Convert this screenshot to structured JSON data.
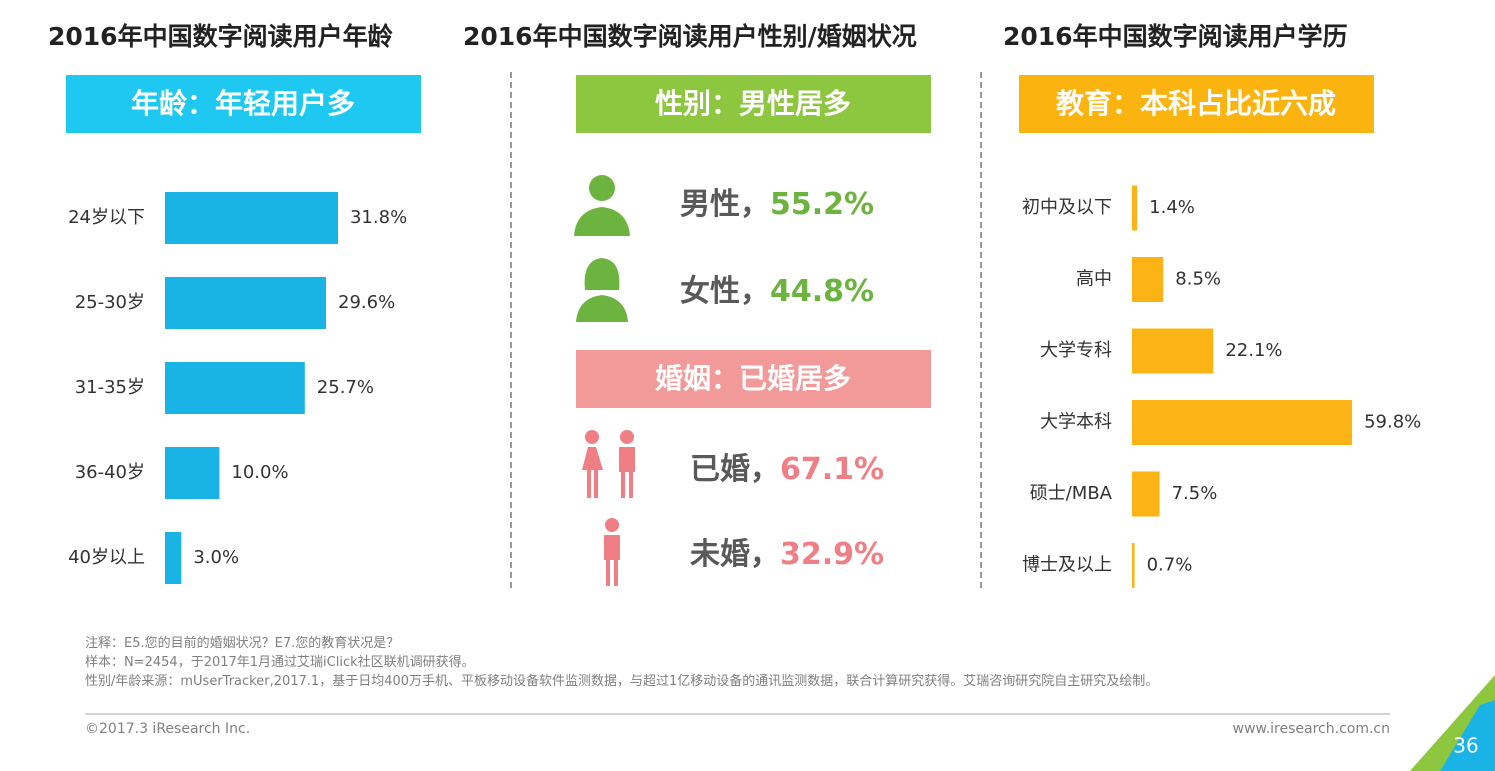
{
  "chart_data": [
    {
      "type": "hbar",
      "title": "2016年中国数字阅读用户年龄",
      "subtitle": "年龄：年轻用户多",
      "categories": [
        "24岁以下",
        "25-30岁",
        "31-35岁",
        "36-40岁",
        "40岁以上"
      ],
      "values": [
        31.8,
        29.6,
        25.7,
        10.0,
        3.0
      ],
      "value_labels": [
        "31.8%",
        "29.6%",
        "25.7%",
        "10.0%",
        "3.0%"
      ],
      "color": "#1ab3e6",
      "header_color": "#1ec8f0"
    },
    {
      "type": "stat",
      "title": "2016年中国数字阅读用户性别/婚姻状况",
      "subtitle": "性别：男性居多",
      "categories": [
        "男性，",
        "女性，"
      ],
      "values": [
        55.2,
        44.8
      ],
      "value_labels": [
        "55.2%",
        "44.8%"
      ],
      "color": "#6db33f",
      "header_color": "#8dc63f"
    },
    {
      "type": "stat",
      "subtitle": "婚姻：已婚居多",
      "categories": [
        "已婚，",
        "未婚，"
      ],
      "values": [
        67.1,
        32.9
      ],
      "value_labels": [
        "67.1%",
        "32.9%"
      ],
      "color": "#ef7f84",
      "header_color": "#f29a9a"
    },
    {
      "type": "hbar",
      "title": "2016年中国数字阅读用户学历",
      "subtitle": "教育：本科占比近六成",
      "categories": [
        "初中及以下",
        "高中",
        "大学专科",
        "大学本科",
        "硕士/MBA",
        "博士及以上"
      ],
      "values": [
        1.4,
        8.5,
        22.1,
        59.8,
        7.5,
        0.7
      ],
      "value_labels": [
        "1.4%",
        "8.5%",
        "22.1%",
        "59.8%",
        "7.5%",
        "0.7%"
      ],
      "color": "#fbb316",
      "header_color": "#fbb40f"
    }
  ],
  "notes": [
    "注释：E5.您的目前的婚姻状况？E7.您的教育状况是？",
    "样本：N=2454，于2017年1月通过艾瑞iClick社区联机调研获得。",
    "性别/年龄来源：mUserTracker,2017.1，基于日均400万手机、平板移动设备软件监测数据，与超过1亿移动设备的通讯监测数据，联合计算研究获得。艾瑞咨询研究院自主研究及绘制。"
  ],
  "copyright": "©2017.3 iResearch Inc.",
  "website": "www.iresearch.com.cn",
  "page_number": 36
}
